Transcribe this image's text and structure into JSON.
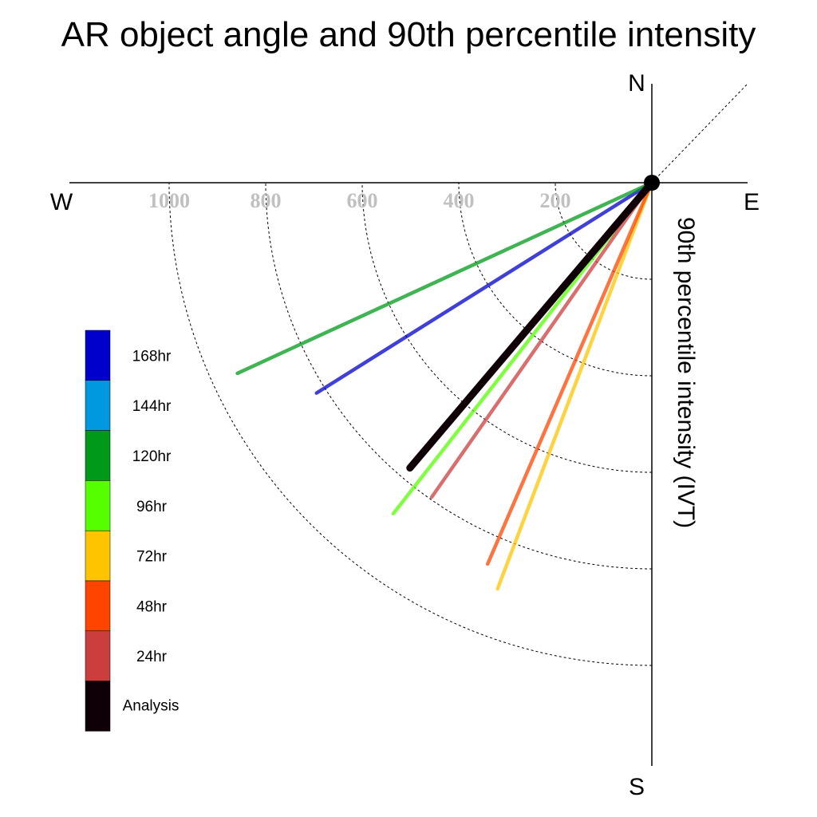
{
  "chart_data": {
    "type": "polar-line",
    "title": "AR object angle and 90th percentile intensity",
    "ylabel": "90th percentile intensity (IVT)",
    "compass": {
      "north": "N",
      "south": "S",
      "east": "E",
      "west": "W"
    },
    "radial_ticks": [
      200,
      400,
      600,
      800,
      1000
    ],
    "radial_range": [
      0,
      1000
    ],
    "grid": true,
    "legend_position": "left",
    "series": [
      {
        "name": "168hr",
        "color": "#0000cc",
        "angle_deg": 237.9,
        "intensity": 820
      },
      {
        "name": "144hr",
        "color": "#0099e0",
        "angle_deg": null,
        "intensity": null
      },
      {
        "name": "120hr",
        "color": "#009919",
        "angle_deg": 245.3,
        "intensity": 945
      },
      {
        "name": "96hr",
        "color": "#55ff00",
        "angle_deg": 218.0,
        "intensity": 870
      },
      {
        "name": "72hr",
        "color": "#ffc400",
        "angle_deg": 200.8,
        "intensity": 900
      },
      {
        "name": "48hr",
        "color": "#ff4400",
        "angle_deg": 203.3,
        "intensity": 860
      },
      {
        "name": "24hr",
        "color": "#cc3d3d",
        "angle_deg": 215.0,
        "intensity": 795
      },
      {
        "name": "Analysis",
        "color": "#0f0008",
        "angle_deg": 220.3,
        "intensity": 775
      }
    ]
  }
}
